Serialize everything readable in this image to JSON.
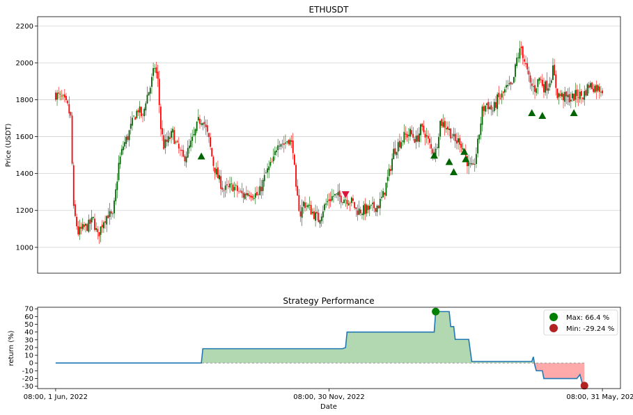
{
  "figure": {
    "top_title": "ETHUSDT",
    "bottom_title": "Strategy Performance"
  },
  "colors": {
    "up": "#006400",
    "down": "#ff0000",
    "buy_marker": "#006400",
    "sell_marker": "#dc143c",
    "return_line": "#1f77b4",
    "positive_fill": "#b2d8b2",
    "negative_fill": "#ffaaaa",
    "max_marker": "#008000",
    "min_marker": "#b22222",
    "grid": "#d3d3d3"
  },
  "chart_data": [
    {
      "type": "candlestick",
      "title": "ETHUSDT",
      "xlabel": "",
      "ylabel": "Price (USDT)",
      "xlim_days": [
        -12,
        376
      ],
      "ylim": [
        860,
        2250
      ],
      "yticks": [
        1000,
        1200,
        1400,
        1600,
        1800,
        2000,
        2200
      ],
      "grid": "horizontal",
      "price_path_daily_close_anchors": [
        [
          0,
          1830
        ],
        [
          5,
          1800
        ],
        [
          8,
          1760
        ],
        [
          10,
          1700
        ],
        [
          12,
          1200
        ],
        [
          15,
          1080
        ],
        [
          18,
          1100
        ],
        [
          22,
          1120
        ],
        [
          25,
          1150
        ],
        [
          28,
          1060
        ],
        [
          32,
          1150
        ],
        [
          35,
          1180
        ],
        [
          38,
          1160
        ],
        [
          40,
          1300
        ],
        [
          42,
          1450
        ],
        [
          45,
          1550
        ],
        [
          48,
          1600
        ],
        [
          52,
          1700
        ],
        [
          55,
          1750
        ],
        [
          58,
          1700
        ],
        [
          60,
          1800
        ],
        [
          63,
          1870
        ],
        [
          66,
          1980
        ],
        [
          68,
          1900
        ],
        [
          70,
          1650
        ],
        [
          72,
          1550
        ],
        [
          75,
          1580
        ],
        [
          78,
          1620
        ],
        [
          80,
          1560
        ],
        [
          85,
          1480
        ],
        [
          88,
          1520
        ],
        [
          92,
          1600
        ],
        [
          95,
          1680
        ],
        [
          98,
          1700
        ],
        [
          102,
          1580
        ],
        [
          105,
          1450
        ],
        [
          108,
          1380
        ],
        [
          112,
          1310
        ],
        [
          118,
          1330
        ],
        [
          122,
          1300
        ],
        [
          125,
          1280
        ],
        [
          128,
          1300
        ],
        [
          132,
          1290
        ],
        [
          135,
          1280
        ],
        [
          140,
          1400
        ],
        [
          145,
          1470
        ],
        [
          148,
          1580
        ],
        [
          152,
          1560
        ],
        [
          155,
          1590
        ],
        [
          158,
          1540
        ],
        [
          160,
          1300
        ],
        [
          163,
          1180
        ],
        [
          165,
          1240
        ],
        [
          168,
          1220
        ],
        [
          172,
          1180
        ],
        [
          175,
          1150
        ],
        [
          178,
          1210
        ],
        [
          182,
          1260
        ],
        [
          185,
          1280
        ],
        [
          190,
          1270
        ],
        [
          195,
          1260
        ],
        [
          198,
          1240
        ],
        [
          200,
          1200
        ],
        [
          205,
          1200
        ],
        [
          210,
          1210
        ],
        [
          215,
          1230
        ],
        [
          218,
          1280
        ],
        [
          222,
          1400
        ],
        [
          225,
          1520
        ],
        [
          228,
          1560
        ],
        [
          232,
          1600
        ],
        [
          236,
          1620
        ],
        [
          240,
          1580
        ],
        [
          243,
          1640
        ],
        [
          246,
          1620
        ],
        [
          250,
          1530
        ],
        [
          253,
          1520
        ],
        [
          256,
          1680
        ],
        [
          260,
          1660
        ],
        [
          263,
          1620
        ],
        [
          266,
          1570
        ],
        [
          269,
          1580
        ],
        [
          272,
          1520
        ],
        [
          275,
          1440
        ],
        [
          278,
          1420
        ],
        [
          281,
          1560
        ],
        [
          284,
          1740
        ],
        [
          287,
          1780
        ],
        [
          291,
          1740
        ],
        [
          294,
          1800
        ],
        [
          297,
          1820
        ],
        [
          300,
          1860
        ],
        [
          304,
          1870
        ],
        [
          307,
          2020
        ],
        [
          310,
          2080
        ],
        [
          313,
          1980
        ],
        [
          316,
          1880
        ],
        [
          319,
          1860
        ],
        [
          322,
          1920
        ],
        [
          325,
          1870
        ],
        [
          328,
          1880
        ],
        [
          331,
          1960
        ],
        [
          334,
          1830
        ],
        [
          337,
          1820
        ],
        [
          340,
          1810
        ],
        [
          344,
          1810
        ],
        [
          347,
          1830
        ],
        [
          351,
          1820
        ],
        [
          355,
          1880
        ],
        [
          358,
          1870
        ],
        [
          362,
          1860
        ],
        [
          364,
          1860
        ]
      ],
      "buy_signals": [
        {
          "day": 97,
          "price": 1495
        },
        {
          "day": 252,
          "price": 1500
        },
        {
          "day": 262,
          "price": 1465
        },
        {
          "day": 265,
          "price": 1410
        },
        {
          "day": 272,
          "price": 1520
        },
        {
          "day": 273,
          "price": 1480
        },
        {
          "day": 317,
          "price": 1730
        },
        {
          "day": 324,
          "price": 1715
        },
        {
          "day": 345,
          "price": 1730
        }
      ],
      "sell_signals": [
        {
          "day": 193,
          "price": 1285
        }
      ]
    },
    {
      "type": "area",
      "title": "Strategy Performance",
      "xlabel": "Date",
      "ylabel": "return (%)",
      "xlim_days": [
        -12,
        376
      ],
      "ylim": [
        -33,
        72
      ],
      "yticks": [
        -30,
        -20,
        -10,
        0,
        10,
        20,
        30,
        40,
        50,
        60,
        70
      ],
      "x_tick_labels": [
        "08:00, 1 Jun, 2022",
        "08:00, 30 Nov, 2022",
        "08:00, 31 May, 2023"
      ],
      "x_tick_days": [
        0,
        182,
        364
      ],
      "return_series": [
        [
          0,
          0
        ],
        [
          97,
          0
        ],
        [
          98,
          18.5
        ],
        [
          191,
          18.5
        ],
        [
          193,
          20
        ],
        [
          194,
          40
        ],
        [
          252,
          40
        ],
        [
          253,
          66.4
        ],
        [
          262,
          66.4
        ],
        [
          263,
          47
        ],
        [
          265,
          47
        ],
        [
          266,
          30.5
        ],
        [
          275,
          30.5
        ],
        [
          277,
          2
        ],
        [
          317,
          2
        ],
        [
          318,
          8
        ],
        [
          319,
          -3
        ],
        [
          320,
          -10
        ],
        [
          324,
          -10
        ],
        [
          325,
          -20
        ],
        [
          347,
          -20
        ],
        [
          349,
          -15
        ],
        [
          351,
          -29.24
        ],
        [
          352,
          -29.24
        ]
      ],
      "max_point": {
        "day": 253,
        "value": 66.4
      },
      "min_point": {
        "day": 352,
        "value": -29.24
      },
      "legend": [
        {
          "label": "Max: 66.4 %",
          "marker": "max"
        },
        {
          "label": "Min: -29.24 %",
          "marker": "min"
        }
      ],
      "legend_placement": "top-right"
    }
  ]
}
